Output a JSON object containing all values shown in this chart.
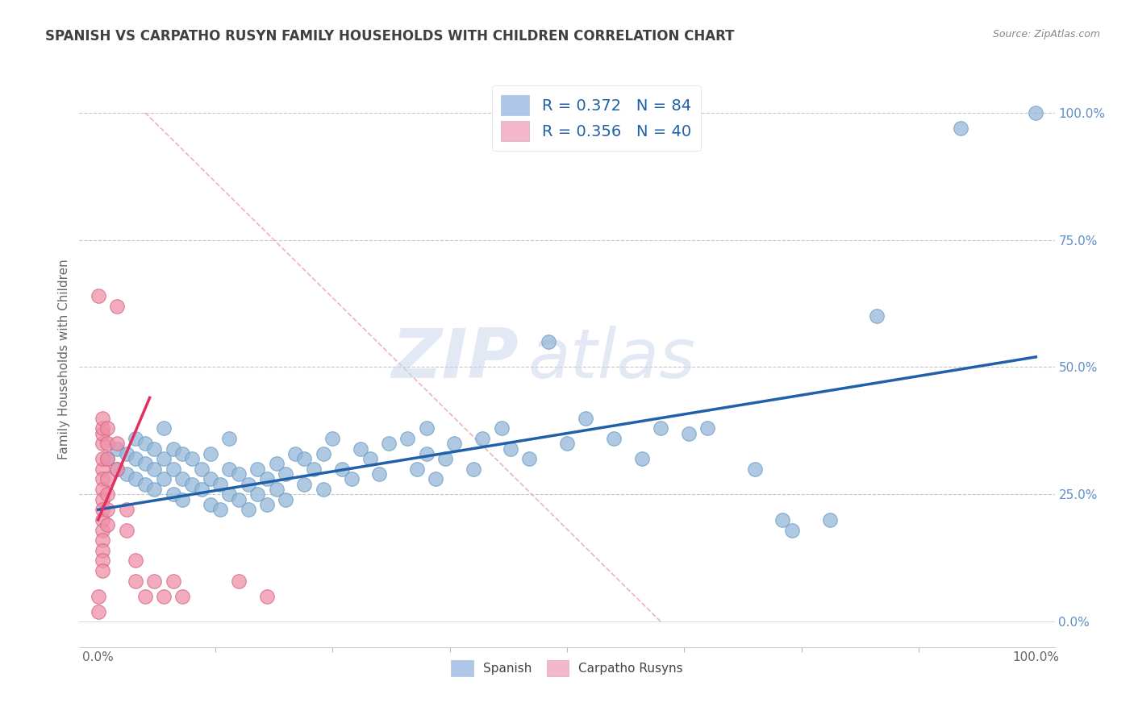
{
  "title": "SPANISH VS CARPATHO RUSYN FAMILY HOUSEHOLDS WITH CHILDREN CORRELATION CHART",
  "source": "Source: ZipAtlas.com",
  "ylabel": "Family Households with Children",
  "xlim": [
    -0.02,
    1.02
  ],
  "ylim": [
    -0.05,
    1.08
  ],
  "watermark": "ZIPatlas",
  "legend": {
    "blue_label": "R = 0.372   N = 84",
    "pink_label": "R = 0.356   N = 40",
    "blue_color": "#aec6e8",
    "pink_color": "#f4b8cb"
  },
  "blue_scatter": [
    [
      0.01,
      0.32
    ],
    [
      0.02,
      0.3
    ],
    [
      0.02,
      0.34
    ],
    [
      0.03,
      0.29
    ],
    [
      0.03,
      0.33
    ],
    [
      0.04,
      0.28
    ],
    [
      0.04,
      0.32
    ],
    [
      0.04,
      0.36
    ],
    [
      0.05,
      0.27
    ],
    [
      0.05,
      0.31
    ],
    [
      0.05,
      0.35
    ],
    [
      0.06,
      0.26
    ],
    [
      0.06,
      0.3
    ],
    [
      0.06,
      0.34
    ],
    [
      0.07,
      0.28
    ],
    [
      0.07,
      0.32
    ],
    [
      0.07,
      0.38
    ],
    [
      0.08,
      0.25
    ],
    [
      0.08,
      0.3
    ],
    [
      0.08,
      0.34
    ],
    [
      0.09,
      0.24
    ],
    [
      0.09,
      0.28
    ],
    [
      0.09,
      0.33
    ],
    [
      0.1,
      0.27
    ],
    [
      0.1,
      0.32
    ],
    [
      0.11,
      0.26
    ],
    [
      0.11,
      0.3
    ],
    [
      0.12,
      0.23
    ],
    [
      0.12,
      0.28
    ],
    [
      0.12,
      0.33
    ],
    [
      0.13,
      0.22
    ],
    [
      0.13,
      0.27
    ],
    [
      0.14,
      0.25
    ],
    [
      0.14,
      0.3
    ],
    [
      0.14,
      0.36
    ],
    [
      0.15,
      0.24
    ],
    [
      0.15,
      0.29
    ],
    [
      0.16,
      0.22
    ],
    [
      0.16,
      0.27
    ],
    [
      0.17,
      0.25
    ],
    [
      0.17,
      0.3
    ],
    [
      0.18,
      0.23
    ],
    [
      0.18,
      0.28
    ],
    [
      0.19,
      0.26
    ],
    [
      0.19,
      0.31
    ],
    [
      0.2,
      0.24
    ],
    [
      0.2,
      0.29
    ],
    [
      0.21,
      0.33
    ],
    [
      0.22,
      0.27
    ],
    [
      0.22,
      0.32
    ],
    [
      0.23,
      0.3
    ],
    [
      0.24,
      0.26
    ],
    [
      0.24,
      0.33
    ],
    [
      0.25,
      0.36
    ],
    [
      0.26,
      0.3
    ],
    [
      0.27,
      0.28
    ],
    [
      0.28,
      0.34
    ],
    [
      0.29,
      0.32
    ],
    [
      0.3,
      0.29
    ],
    [
      0.31,
      0.35
    ],
    [
      0.33,
      0.36
    ],
    [
      0.34,
      0.3
    ],
    [
      0.35,
      0.33
    ],
    [
      0.35,
      0.38
    ],
    [
      0.36,
      0.28
    ],
    [
      0.37,
      0.32
    ],
    [
      0.38,
      0.35
    ],
    [
      0.4,
      0.3
    ],
    [
      0.41,
      0.36
    ],
    [
      0.43,
      0.38
    ],
    [
      0.44,
      0.34
    ],
    [
      0.46,
      0.32
    ],
    [
      0.48,
      0.55
    ],
    [
      0.5,
      0.35
    ],
    [
      0.52,
      0.4
    ],
    [
      0.55,
      0.36
    ],
    [
      0.58,
      0.32
    ],
    [
      0.6,
      0.38
    ],
    [
      0.63,
      0.37
    ],
    [
      0.65,
      0.38
    ],
    [
      0.7,
      0.3
    ],
    [
      0.73,
      0.2
    ],
    [
      0.74,
      0.18
    ],
    [
      0.78,
      0.2
    ],
    [
      0.83,
      0.6
    ],
    [
      0.92,
      0.97
    ],
    [
      1.0,
      1.0
    ]
  ],
  "pink_scatter": [
    [
      0.005,
      0.3
    ],
    [
      0.005,
      0.32
    ],
    [
      0.005,
      0.35
    ],
    [
      0.005,
      0.37
    ],
    [
      0.005,
      0.28
    ],
    [
      0.005,
      0.26
    ],
    [
      0.005,
      0.24
    ],
    [
      0.005,
      0.22
    ],
    [
      0.005,
      0.2
    ],
    [
      0.005,
      0.18
    ],
    [
      0.005,
      0.16
    ],
    [
      0.005,
      0.14
    ],
    [
      0.005,
      0.12
    ],
    [
      0.005,
      0.1
    ],
    [
      0.005,
      0.38
    ],
    [
      0.005,
      0.4
    ],
    [
      0.01,
      0.28
    ],
    [
      0.01,
      0.32
    ],
    [
      0.01,
      0.35
    ],
    [
      0.01,
      0.38
    ],
    [
      0.01,
      0.25
    ],
    [
      0.01,
      0.22
    ],
    [
      0.01,
      0.19
    ],
    [
      0.02,
      0.3
    ],
    [
      0.02,
      0.35
    ],
    [
      0.02,
      0.62
    ],
    [
      0.03,
      0.22
    ],
    [
      0.03,
      0.18
    ],
    [
      0.04,
      0.12
    ],
    [
      0.04,
      0.08
    ],
    [
      0.05,
      0.05
    ],
    [
      0.06,
      0.08
    ],
    [
      0.07,
      0.05
    ],
    [
      0.08,
      0.08
    ],
    [
      0.09,
      0.05
    ],
    [
      0.0,
      0.64
    ],
    [
      0.15,
      0.08
    ],
    [
      0.18,
      0.05
    ],
    [
      0.0,
      0.05
    ],
    [
      0.0,
      0.02
    ]
  ],
  "blue_line": {
    "x0": 0.0,
    "y0": 0.22,
    "x1": 1.0,
    "y1": 0.52
  },
  "pink_line": {
    "x0": 0.0,
    "y0": 0.2,
    "x1": 0.055,
    "y1": 0.44
  },
  "diagonal_line": {
    "x0": 0.05,
    "y0": 1.0,
    "x1": 0.6,
    "y1": 0.0
  },
  "bg_color": "#ffffff",
  "grid_color": "#c8c8c8",
  "title_color": "#404040",
  "scatter_blue_color": "#93b8d8",
  "scatter_pink_color": "#f090a8",
  "trend_blue_color": "#2060a8",
  "trend_pink_color": "#e03060",
  "diagonal_color": "#e8a0b0",
  "right_axis_color": "#6090c8",
  "ytick_positions_right": [
    1.0,
    0.75,
    0.5,
    0.25,
    0.0
  ],
  "ytick_labels_right": [
    "100.0%",
    "75.0%",
    "50.0%",
    "25.0%",
    "0.0%"
  ]
}
